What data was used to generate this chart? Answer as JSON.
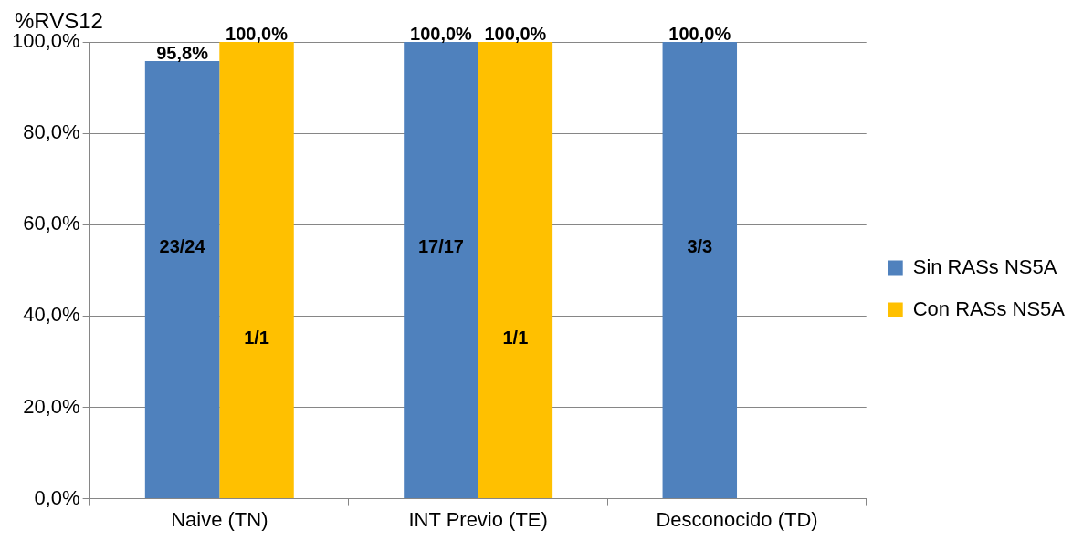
{
  "chart_data": {
    "type": "bar",
    "ylabel": "%RVS12",
    "categories": [
      "Naive (TN)",
      "INT Previo (TE)",
      "Desconocido (TD)"
    ],
    "series": [
      {
        "name": "Sin RASs NS5A",
        "color": "#4f81bd",
        "values": [
          95.8,
          100,
          100
        ],
        "value_labels": [
          "95,8%",
          "100,0%",
          "100,0%"
        ]
      },
      {
        "name": "Con RASs NS5A",
        "color": "#ffc000",
        "values": [
          100,
          100,
          null
        ],
        "value_labels": [
          "100,0%",
          "100,0%",
          null
        ]
      }
    ],
    "ylim": [
      0,
      100
    ],
    "yticks": [
      {
        "value": 0,
        "label": "0,0%"
      },
      {
        "value": 20,
        "label": "20,0%"
      },
      {
        "value": 40,
        "label": "40,0%"
      },
      {
        "value": 60,
        "label": "60,0%"
      },
      {
        "value": 80,
        "label": "80,0%"
      },
      {
        "value": 100,
        "label": "100,0%"
      }
    ],
    "grid": "y",
    "legend": "right",
    "annotations": [
      {
        "text": "23/24",
        "x": "Naive (TN)",
        "y": 55
      },
      {
        "text": "1/1",
        "x": "Naive (TN)",
        "y": 35
      },
      {
        "text": "17/17",
        "x": "INT Previo (TE)",
        "y": 55
      },
      {
        "text": "1/1",
        "x": "INT Previo (TE)",
        "y": 35
      },
      {
        "text": "3/3",
        "x": "Desconocido (TD)",
        "y": 55
      }
    ]
  }
}
